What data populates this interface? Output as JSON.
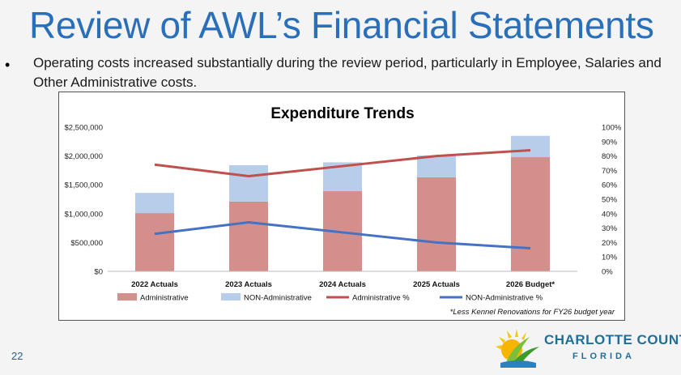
{
  "slide": {
    "title": "Review of AWL’s Financial Statements",
    "bullet_symbol": "•",
    "bullet_text": "Operating costs increased substantially during the review period, particularly in Employee, Salaries and Other Administrative costs.",
    "slide_number": "22",
    "footnote": "*Less Kennel Renovations for FY26 budget year",
    "logo": {
      "line1": "CHARLOTTE COUNTY",
      "line2": "FLORIDA",
      "icon": "sun-palm-icon"
    }
  },
  "colors": {
    "title": "#2a6fba",
    "administrative_bar": "#d48f8d",
    "non_administrative_bar": "#b8cde9",
    "administrative_line": "#c0504d",
    "non_administrative_line": "#4472c4"
  },
  "chart_data": {
    "type": "bar",
    "stacked": true,
    "title": "Expenditure Trends",
    "categories": [
      "2022 Actuals",
      "2023 Actuals",
      "2024 Actuals",
      "2025 Actuals",
      "2026 Budget*"
    ],
    "series": [
      {
        "name": "Administrative",
        "type": "bar",
        "axis": "left",
        "values": [
          1010000,
          1210000,
          1390000,
          1630000,
          1980000
        ]
      },
      {
        "name": "NON-Administrative",
        "type": "bar",
        "axis": "left",
        "values": [
          350000,
          630000,
          500000,
          380000,
          370000
        ]
      },
      {
        "name": "Administrative %",
        "type": "line",
        "axis": "right",
        "values": [
          74,
          66,
          73,
          80,
          84
        ]
      },
      {
        "name": "NON-Administrative %",
        "type": "line",
        "axis": "right",
        "values": [
          26,
          34,
          27,
          20,
          16
        ]
      }
    ],
    "y_left": {
      "lim": [
        0,
        2500000
      ],
      "ticks": [
        "$0",
        "$500,000",
        "$1,000,000",
        "$1,500,000",
        "$2,000,000",
        "$2,500,000"
      ]
    },
    "y_right": {
      "lim": [
        0,
        100
      ],
      "ticks": [
        "0%",
        "10%",
        "20%",
        "30%",
        "40%",
        "50%",
        "60%",
        "70%",
        "80%",
        "90%",
        "100%"
      ]
    },
    "grid": false,
    "legend_position": "bottom"
  }
}
